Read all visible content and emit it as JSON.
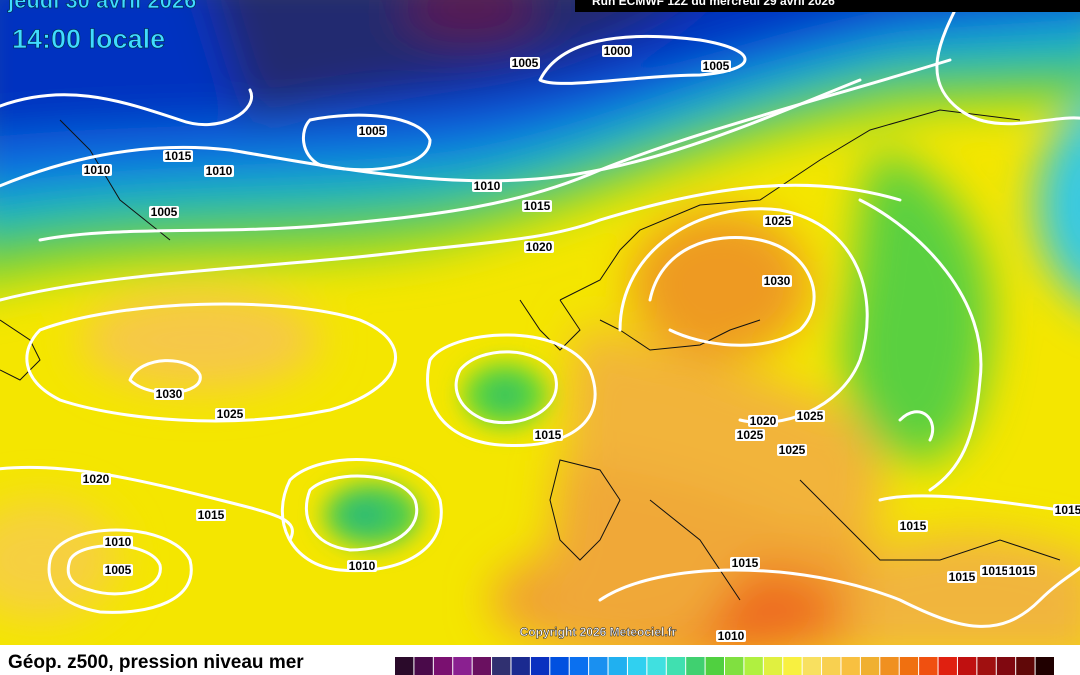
{
  "header": {
    "date": "jeudi 30 avril 2026",
    "time": "14:00 locale",
    "run": "Run ECMWF 12Z du mercredi 29 avril 2026"
  },
  "isobars": [
    "1005",
    "1000",
    "1005",
    "1005",
    "1015",
    "1010",
    "1010",
    "1005",
    "1010",
    "1015",
    "1020",
    "1025",
    "1030",
    "1030",
    "1025",
    "1015",
    "1020",
    "1025",
    "1025",
    "1025",
    "1020",
    "1015",
    "1010",
    "1005",
    "1010",
    "1015",
    "1015",
    "1015",
    "1015",
    "1015",
    "1015",
    "1010"
  ],
  "copyright": "Copyright 2026 Meteociel.fr",
  "legend": {
    "title": "Géop. z500, pression niveau mer"
  }
}
